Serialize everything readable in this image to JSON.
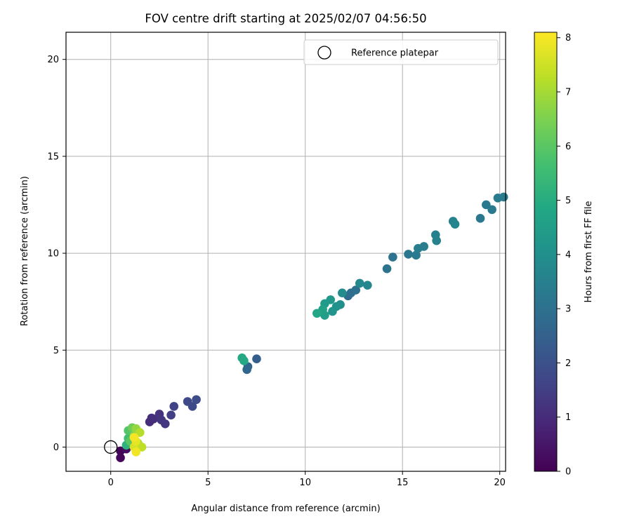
{
  "chart_data": {
    "type": "scatter",
    "title": "FOV centre drift starting at 2025/02/07 04:56:50",
    "xlabel": "Angular distance from reference (arcmin)",
    "ylabel": "Rotation from reference (arcmin)",
    "xlim": [
      -2.3,
      20.3
    ],
    "ylim": [
      -1.25,
      21.4
    ],
    "xticks": [
      "0",
      "5",
      "10",
      "15",
      "20"
    ],
    "yticks": [
      "0",
      "5",
      "10",
      "15",
      "20"
    ],
    "grid": true,
    "legend_position": "top-right",
    "legend": [
      {
        "label": "Reference platepar",
        "marker": "open-circle",
        "x": 0,
        "y": 0
      }
    ],
    "colorbar": {
      "label": "Hours from first FF file",
      "range": [
        0,
        8.1
      ],
      "ticks": [
        "0",
        "1",
        "2",
        "3",
        "4",
        "5",
        "6",
        "7",
        "8"
      ],
      "colormap": "viridis"
    },
    "points": [
      {
        "x": 0.5,
        "y": -0.2,
        "h": 0.1
      },
      {
        "x": 0.5,
        "y": -0.55,
        "h": 0.15
      },
      {
        "x": 0.8,
        "y": -0.1,
        "h": 0.3
      },
      {
        "x": 2.0,
        "y": 1.3,
        "h": 1.0
      },
      {
        "x": 2.2,
        "y": 1.45,
        "h": 1.1
      },
      {
        "x": 2.1,
        "y": 1.5,
        "h": 1.05
      },
      {
        "x": 2.5,
        "y": 1.7,
        "h": 1.2
      },
      {
        "x": 2.6,
        "y": 1.4,
        "h": 1.25
      },
      {
        "x": 2.8,
        "y": 1.2,
        "h": 1.3
      },
      {
        "x": 3.1,
        "y": 1.65,
        "h": 1.5
      },
      {
        "x": 3.25,
        "y": 2.1,
        "h": 1.6
      },
      {
        "x": 3.95,
        "y": 2.35,
        "h": 1.75
      },
      {
        "x": 4.2,
        "y": 2.1,
        "h": 1.8
      },
      {
        "x": 4.4,
        "y": 2.45,
        "h": 1.85
      },
      {
        "x": 6.75,
        "y": 4.6,
        "h": 4.9
      },
      {
        "x": 6.85,
        "y": 4.45,
        "h": 4.85
      },
      {
        "x": 7.0,
        "y": 4.0,
        "h": 2.7
      },
      {
        "x": 7.05,
        "y": 4.15,
        "h": 2.6
      },
      {
        "x": 7.5,
        "y": 4.55,
        "h": 2.4
      },
      {
        "x": 10.6,
        "y": 6.9,
        "h": 4.8
      },
      {
        "x": 10.9,
        "y": 7.1,
        "h": 4.6
      },
      {
        "x": 11.0,
        "y": 6.8,
        "h": 4.5
      },
      {
        "x": 11.0,
        "y": 7.4,
        "h": 4.4
      },
      {
        "x": 11.3,
        "y": 7.6,
        "h": 4.3
      },
      {
        "x": 11.4,
        "y": 7.0,
        "h": 4.2
      },
      {
        "x": 11.6,
        "y": 7.25,
        "h": 4.1
      },
      {
        "x": 11.8,
        "y": 7.35,
        "h": 4.0
      },
      {
        "x": 11.9,
        "y": 7.95,
        "h": 3.9
      },
      {
        "x": 12.2,
        "y": 7.8,
        "h": 2.8
      },
      {
        "x": 12.35,
        "y": 7.95,
        "h": 2.9
      },
      {
        "x": 12.6,
        "y": 8.1,
        "h": 3.0
      },
      {
        "x": 12.8,
        "y": 8.45,
        "h": 3.8
      },
      {
        "x": 13.2,
        "y": 8.35,
        "h": 3.7
      },
      {
        "x": 14.2,
        "y": 9.2,
        "h": 3.1
      },
      {
        "x": 14.5,
        "y": 9.8,
        "h": 3.05
      },
      {
        "x": 15.3,
        "y": 9.95,
        "h": 3.2
      },
      {
        "x": 15.7,
        "y": 9.9,
        "h": 3.3
      },
      {
        "x": 15.8,
        "y": 10.25,
        "h": 3.4
      },
      {
        "x": 16.1,
        "y": 10.35,
        "h": 3.45
      },
      {
        "x": 16.7,
        "y": 10.95,
        "h": 3.5
      },
      {
        "x": 16.75,
        "y": 10.65,
        "h": 3.55
      },
      {
        "x": 17.6,
        "y": 11.65,
        "h": 3.6
      },
      {
        "x": 17.7,
        "y": 11.5,
        "h": 3.65
      },
      {
        "x": 19.0,
        "y": 11.8,
        "h": 3.2
      },
      {
        "x": 19.3,
        "y": 12.5,
        "h": 3.25
      },
      {
        "x": 19.6,
        "y": 12.25,
        "h": 3.3
      },
      {
        "x": 19.9,
        "y": 12.85,
        "h": 3.35
      },
      {
        "x": 20.2,
        "y": 12.9,
        "h": 3.4
      },
      {
        "x": 0.8,
        "y": 0.1,
        "h": 5.2
      },
      {
        "x": 0.9,
        "y": 0.45,
        "h": 5.6
      },
      {
        "x": 0.9,
        "y": 0.85,
        "h": 5.9
      },
      {
        "x": 1.0,
        "y": 0.3,
        "h": 6.0
      },
      {
        "x": 1.1,
        "y": 1.0,
        "h": 6.3
      },
      {
        "x": 1.2,
        "y": 0.6,
        "h": 6.6
      },
      {
        "x": 1.3,
        "y": 0.95,
        "h": 6.8
      },
      {
        "x": 1.4,
        "y": 0.2,
        "h": 7.0
      },
      {
        "x": 1.5,
        "y": 0.75,
        "h": 7.2
      },
      {
        "x": 1.6,
        "y": 0.0,
        "h": 7.3
      },
      {
        "x": 1.2,
        "y": 0.0,
        "h": 7.6
      },
      {
        "x": 1.3,
        "y": 0.3,
        "h": 7.8
      },
      {
        "x": 1.3,
        "y": -0.25,
        "h": 7.95
      },
      {
        "x": 1.2,
        "y": 0.5,
        "h": 8.0
      }
    ]
  }
}
